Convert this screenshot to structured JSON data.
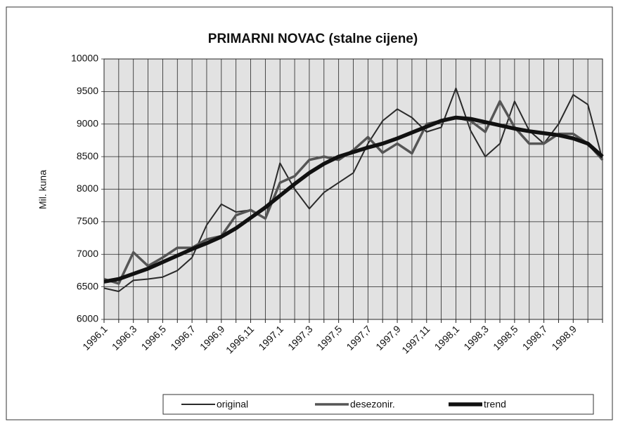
{
  "chart_data": {
    "type": "line",
    "title": "PRIMARNI NOVAC  (stalne cijene)",
    "y_label": "Mil. kuna",
    "categories": [
      "1996,1",
      null,
      "1996,3",
      null,
      "1996,5",
      null,
      "1996,7",
      null,
      "1996,9",
      null,
      "1996,11",
      null,
      "1997,1",
      null,
      "1997,3",
      null,
      "1997,5",
      null,
      "1997,7",
      null,
      "1997,9",
      null,
      "1997,11",
      null,
      "1998,1",
      null,
      "1998,3",
      null,
      "1998,5",
      null,
      "1998,7",
      null,
      "1998,9",
      null,
      null
    ],
    "series": [
      {
        "name": "original",
        "color": "#2a2a2a",
        "width": 2,
        "values": [
          6480,
          6430,
          6600,
          6620,
          6650,
          6750,
          6950,
          7450,
          7770,
          7650,
          7680,
          7550,
          8400,
          8000,
          7700,
          7950,
          8100,
          8250,
          8700,
          9050,
          9230,
          9100,
          8880,
          8950,
          9550,
          8900,
          8500,
          8700,
          9350,
          8900,
          8700,
          9000,
          9450,
          9300,
          8450
        ]
      },
      {
        "name": "desezonir.",
        "color": "#555555",
        "width": 3.5,
        "values": [
          6620,
          6550,
          7030,
          6820,
          6950,
          7100,
          7100,
          7230,
          7280,
          7600,
          7680,
          7550,
          8100,
          8200,
          8450,
          8500,
          8450,
          8600,
          8800,
          8560,
          8700,
          8550,
          9000,
          9050,
          9100,
          9050,
          8880,
          9350,
          8950,
          8700,
          8700,
          8850,
          8850,
          8700,
          8450
        ]
      },
      {
        "name": "trend",
        "color": "#111111",
        "width": 5.5,
        "values": [
          6580,
          6620,
          6700,
          6780,
          6880,
          6980,
          7080,
          7170,
          7270,
          7400,
          7560,
          7720,
          7900,
          8080,
          8250,
          8390,
          8500,
          8570,
          8640,
          8700,
          8780,
          8870,
          8960,
          9050,
          9100,
          9080,
          9030,
          8980,
          8930,
          8890,
          8860,
          8830,
          8780,
          8700,
          8500
        ]
      }
    ],
    "ylim": [
      6000,
      10000
    ],
    "yticks": [
      6000,
      6500,
      7000,
      7500,
      8000,
      8500,
      9000,
      9500,
      10000
    ],
    "grid": true
  }
}
